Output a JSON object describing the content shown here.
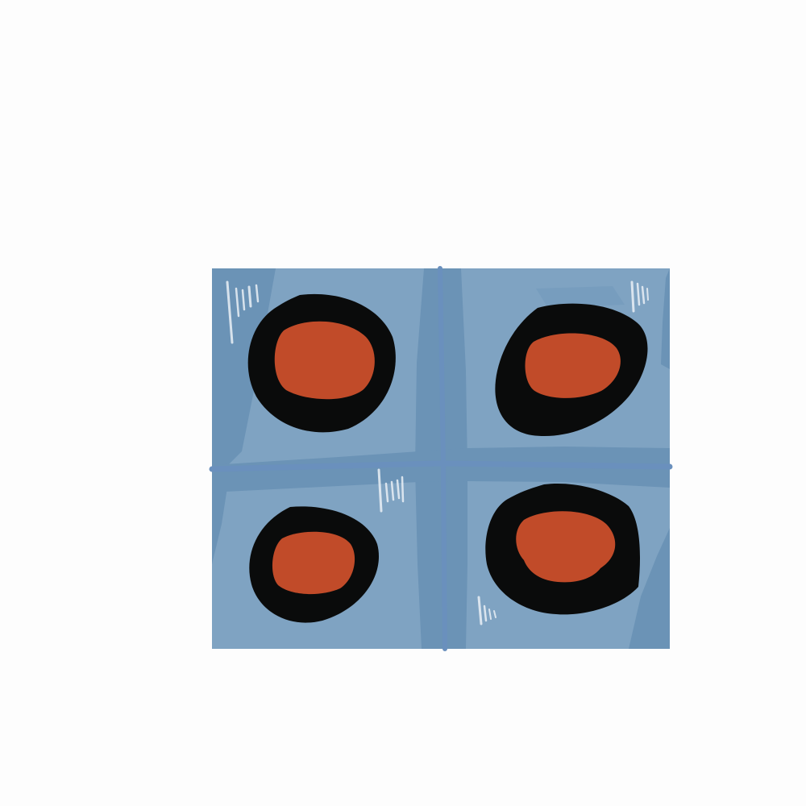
{
  "image": {
    "subject": "stovetop",
    "colors": {
      "background": "#fdfdfd",
      "panel": "#7fa3c2",
      "panel_shade": "#6b93b6",
      "seam": "#6a90bd",
      "burner_ring": "#0a0b0b",
      "burner_center": "#c14b29",
      "glint": "#eaf0f6"
    },
    "burners": [
      {
        "name": "burner-top-left"
      },
      {
        "name": "burner-top-right"
      },
      {
        "name": "burner-bottom-left"
      },
      {
        "name": "burner-bottom-right"
      }
    ]
  }
}
